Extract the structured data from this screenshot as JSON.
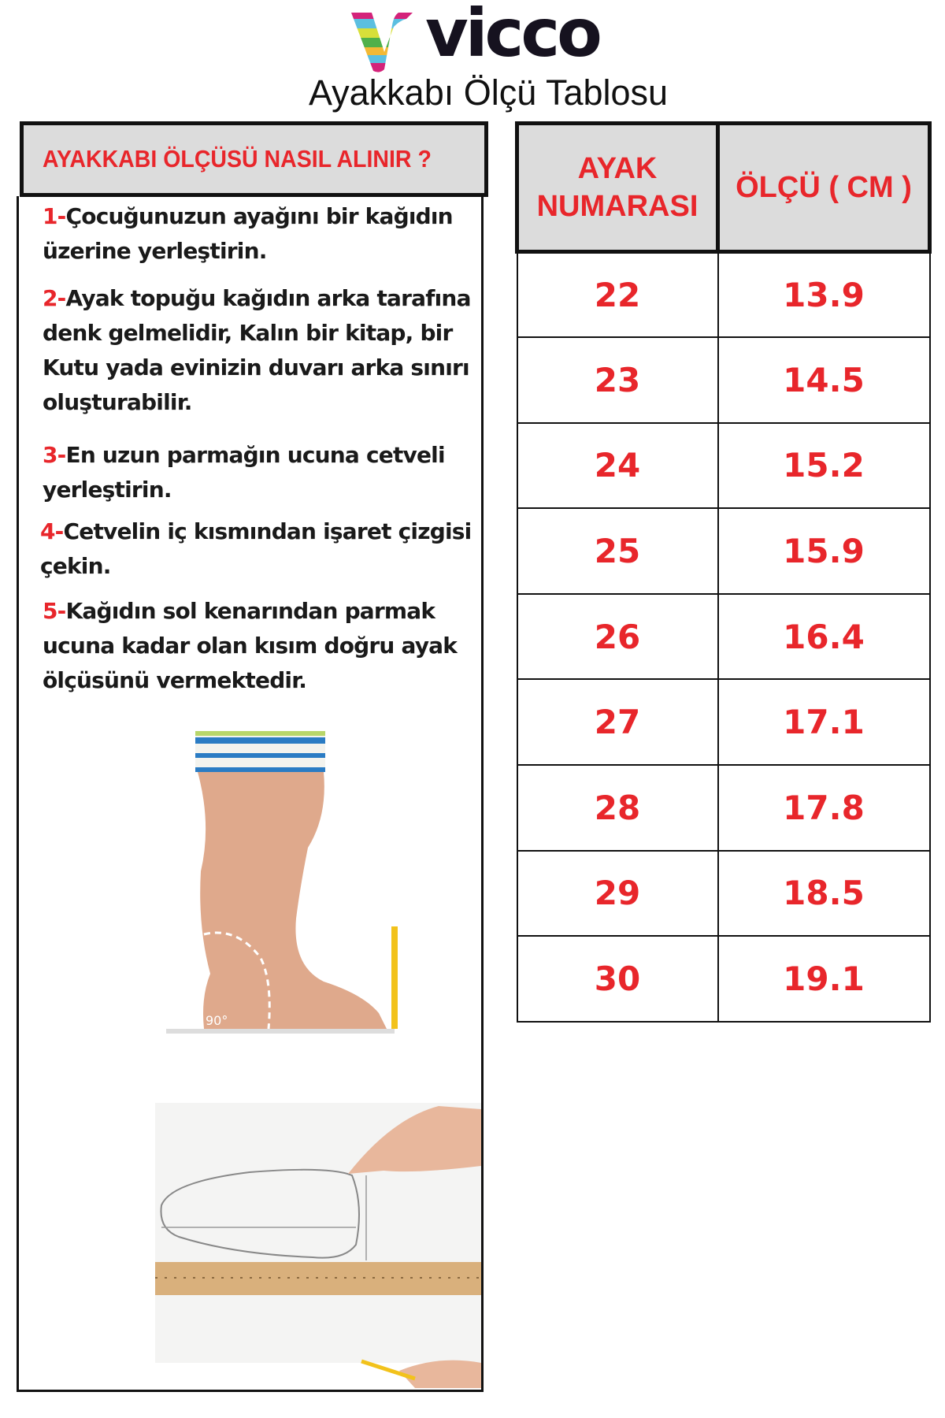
{
  "brand": {
    "name": "vicco",
    "logo_colors": [
      "#d4237a",
      "#5bbfe0",
      "#d7df3a",
      "#4fb04a",
      "#f2b935",
      "#ef7f2a"
    ]
  },
  "title": "Ayakkabı Ölçü Tablosu",
  "guide": {
    "heading": "AYAKKABI ÖLÇÜSÜ NASIL ALINIR ?",
    "steps": [
      {
        "num": "1-",
        "text": "Çocuğunuzun ayağını bir kağıdın üzerine yerleştirin."
      },
      {
        "num": "2-",
        "text": "Ayak topuğu kağıdın arka tarafına denk gelmelidir, Kalın bir kitap, bir Kutu yada evinizin duvarı arka sınırı oluşturabilir."
      },
      {
        "num": "3-",
        "text": "En uzun parmağın ucuna cetveli yerleştirin."
      },
      {
        "num": "4-",
        "text": "Cetvelin iç kısmından işaret çizgisi çekin."
      },
      {
        "num": "5-",
        "text": "Kağıdın sol kenarından parmak ucuna kadar olan kısım doğru ayak ölçüsünü vermektedir."
      }
    ],
    "photo_angle_label": "90°"
  },
  "size_table": {
    "headers": [
      "AYAK NUMARASI",
      "ÖLÇÜ ( CM )"
    ],
    "rows": [
      [
        "22",
        "13.9"
      ],
      [
        "23",
        "14.5"
      ],
      [
        "24",
        "15.2"
      ],
      [
        "25",
        "15.9"
      ],
      [
        "26",
        "16.4"
      ],
      [
        "27",
        "17.1"
      ],
      [
        "28",
        "17.8"
      ],
      [
        "29",
        "18.5"
      ],
      [
        "30",
        "19.1"
      ]
    ]
  },
  "colors": {
    "accent_red": "#e8262b",
    "header_gray": "#dcdcdc",
    "border": "#111111"
  }
}
